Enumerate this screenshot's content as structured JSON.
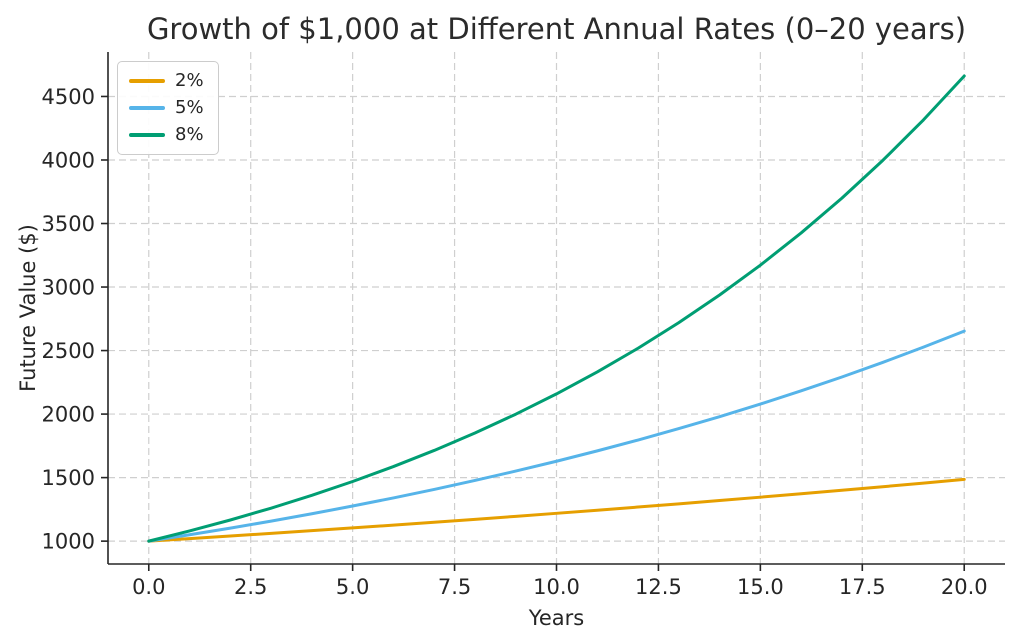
{
  "chart_data": {
    "type": "line",
    "title": "Growth of $1,000 at Different Annual Rates (0–20 years)",
    "xlabel": "Years",
    "ylabel": "Future Value ($)",
    "xlim": [
      -1,
      21
    ],
    "ylim": [
      820,
      4850
    ],
    "grid": true,
    "grid_style": "dashed",
    "grid_color": "#cfcfcf",
    "axis_color": "#262626",
    "legend_position": "upper-left",
    "x": [
      0,
      1,
      2,
      3,
      4,
      5,
      6,
      7,
      8,
      9,
      10,
      11,
      12,
      13,
      14,
      15,
      16,
      17,
      18,
      19,
      20
    ],
    "x_ticks": [
      0,
      2.5,
      5,
      7.5,
      10,
      12.5,
      15,
      17.5,
      20
    ],
    "x_tick_labels": [
      "0.0",
      "2.5",
      "5.0",
      "7.5",
      "10.0",
      "12.5",
      "15.0",
      "17.5",
      "20.0"
    ],
    "y_ticks": [
      1000,
      1500,
      2000,
      2500,
      3000,
      3500,
      4000,
      4500
    ],
    "y_tick_labels": [
      "1000",
      "1500",
      "2000",
      "2500",
      "3000",
      "3500",
      "4000",
      "4500"
    ],
    "series": [
      {
        "name": "2%",
        "color": "#E69F00",
        "values": [
          1000.0,
          1020.0,
          1040.4,
          1061.21,
          1082.43,
          1104.08,
          1126.16,
          1148.69,
          1171.66,
          1195.09,
          1218.99,
          1243.37,
          1268.24,
          1293.61,
          1319.48,
          1345.87,
          1372.79,
          1400.24,
          1428.25,
          1456.81,
          1485.95
        ]
      },
      {
        "name": "5%",
        "color": "#56B4E9",
        "values": [
          1000.0,
          1050.0,
          1102.5,
          1157.63,
          1215.51,
          1276.28,
          1340.1,
          1407.1,
          1477.46,
          1551.33,
          1628.89,
          1710.34,
          1795.86,
          1885.65,
          1979.93,
          2078.93,
          2182.87,
          2292.02,
          2406.62,
          2526.95,
          2653.3
        ]
      },
      {
        "name": "8%",
        "color": "#009E73",
        "values": [
          1000.0,
          1080.0,
          1166.4,
          1259.71,
          1360.49,
          1469.33,
          1586.87,
          1713.82,
          1850.93,
          1999.0,
          2158.92,
          2331.64,
          2518.17,
          2719.62,
          2937.19,
          3172.17,
          3425.94,
          3700.02,
          3996.02,
          4315.7,
          4660.96
        ]
      }
    ]
  }
}
